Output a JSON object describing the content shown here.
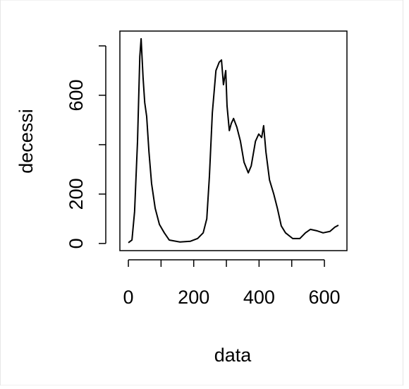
{
  "chart_data": {
    "type": "line",
    "xlabel": "data",
    "ylabel": "decessi",
    "x": [
      0,
      11,
      19,
      28,
      35,
      39,
      45,
      50,
      56,
      63,
      71,
      82,
      95,
      110,
      125,
      158,
      190,
      212,
      229,
      240,
      248,
      257,
      268,
      278,
      285,
      291,
      298,
      302,
      309,
      315,
      322,
      332,
      343,
      354,
      367,
      376,
      389,
      399,
      408,
      414,
      421,
      432,
      445,
      456,
      468,
      481,
      503,
      525,
      542,
      557,
      578,
      596,
      617,
      632,
      643
    ],
    "series": [
      {
        "color": "#000000",
        "values": [
          3,
          14,
          129,
          414,
          757,
          829,
          671,
          571,
          514,
          371,
          243,
          143,
          77,
          43,
          14,
          6,
          9,
          20,
          43,
          100,
          271,
          529,
          700,
          734,
          743,
          643,
          700,
          557,
          457,
          486,
          506,
          471,
          414,
          329,
          286,
          314,
          414,
          443,
          429,
          477,
          371,
          257,
          200,
          143,
          71,
          43,
          20,
          20,
          43,
          57,
          51,
          43,
          49,
          66,
          74
        ]
      }
    ],
    "xlim": [
      -26,
      669
    ],
    "ylim": [
      -29,
      860
    ],
    "xticks": [
      0,
      200,
      400,
      600
    ],
    "xminorticks": [
      100,
      300,
      500
    ],
    "yticks": [
      0,
      200,
      600
    ],
    "yminorticks": [
      400,
      800
    ],
    "grid": false
  }
}
